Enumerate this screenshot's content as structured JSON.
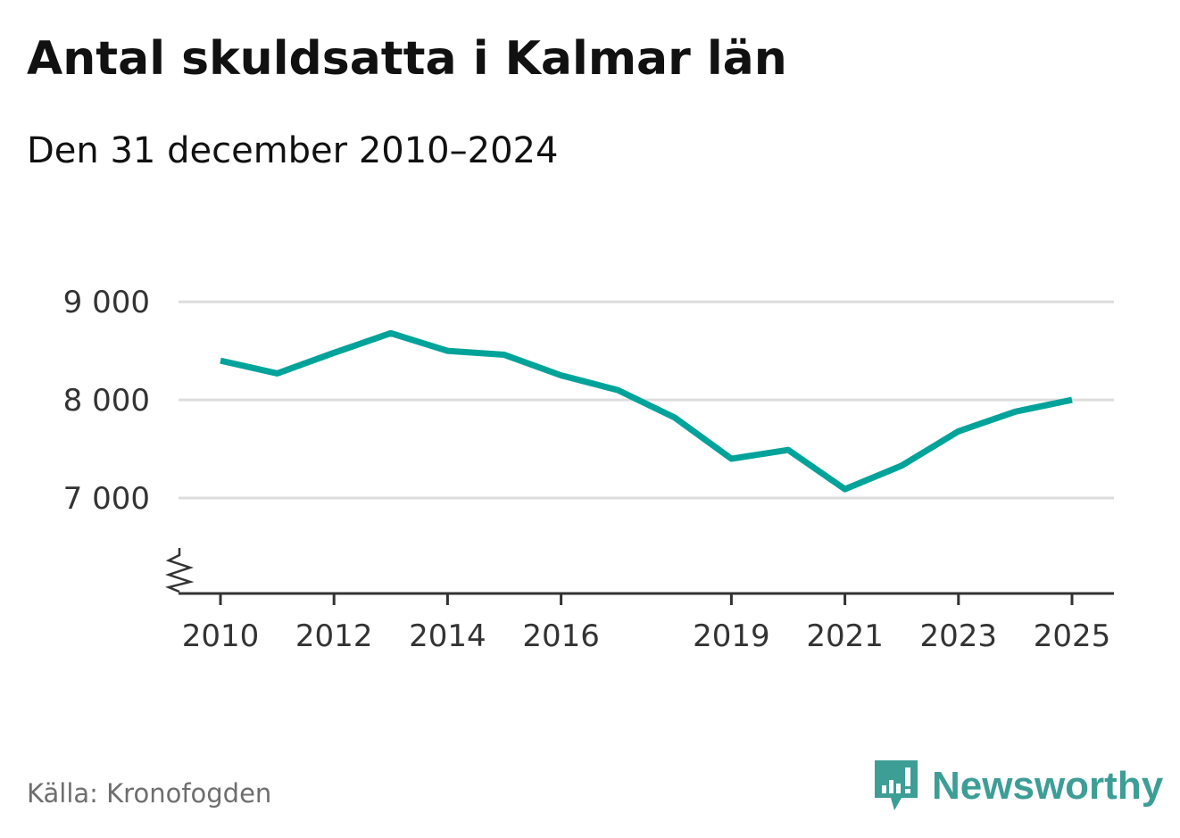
{
  "chart_data": {
    "type": "line",
    "title": "Antal skuldsatta i Kalmar län",
    "subtitle": "Den 31 december 2010–2024",
    "xlabel": "",
    "ylabel": "",
    "x": [
      2010,
      2011,
      2012,
      2013,
      2014,
      2015,
      2016,
      2017,
      2018,
      2019,
      2020,
      2021,
      2022,
      2023,
      2024,
      2025
    ],
    "series": [
      {
        "name": "Antal skuldsatta",
        "color": "#00a39a",
        "values": [
          8400,
          8270,
          8480,
          8680,
          8500,
          8460,
          8250,
          8100,
          7820,
          7400,
          7490,
          7090,
          7330,
          7680,
          7880,
          8000
        ]
      }
    ],
    "xticks": [
      2010,
      2012,
      2014,
      2016,
      2019,
      2021,
      2023,
      2025
    ],
    "xtick_labels": [
      "2010",
      "2012",
      "2014",
      "2016",
      "2019",
      "2021",
      "2023",
      "2025"
    ],
    "yticks": [
      7000,
      8000,
      9000
    ],
    "ytick_labels": [
      "7 000",
      "8 000",
      "9 000"
    ],
    "xlim": [
      2010,
      2025
    ],
    "ylim": [
      6000,
      9000
    ],
    "grid": true,
    "axis_break": true
  },
  "source": "Källa: Kronofogden",
  "brand": {
    "name": "Newsworthy",
    "color": "#3d9e96"
  }
}
